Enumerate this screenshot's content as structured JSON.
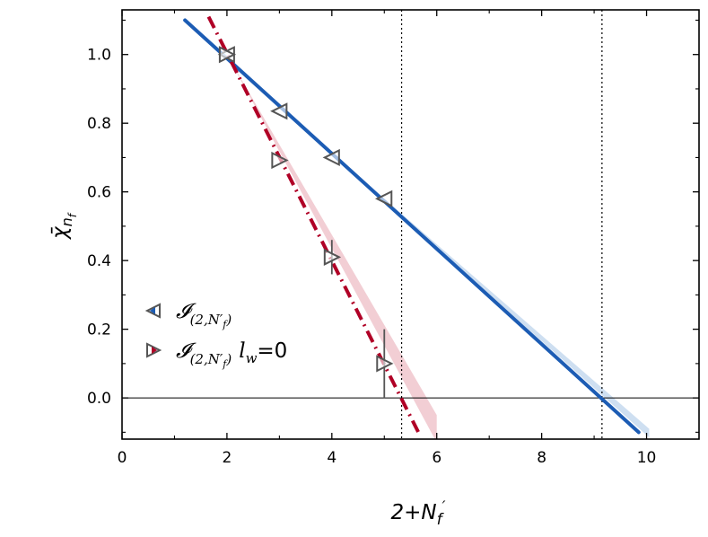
{
  "chart_data": {
    "type": "line",
    "xlabel": "2+N_f′",
    "ylabel": "χ̄_{n_f}",
    "xlim": [
      0,
      11
    ],
    "ylim": [
      -0.12,
      1.13
    ],
    "xticks": [
      0,
      2,
      4,
      6,
      8,
      10
    ],
    "yticks": [
      0.0,
      0.2,
      0.4,
      0.6,
      0.8,
      1.0
    ],
    "grid": false,
    "legend_position": "lower-left",
    "zero_line": 0.0,
    "vlines": [
      5.33,
      9.15
    ],
    "series": [
      {
        "name": "I(2,N_f′)",
        "legend_main": "𝓘",
        "legend_sub": "(2,N′",
        "legend_subsub": "f",
        "legend_close": ")",
        "legend_extra": "",
        "color": "#1c5cb4",
        "band_color": "#c5d9ef",
        "marker": "triangle-left",
        "points": [
          {
            "x": 2,
            "y": 1.0,
            "err": 0.0
          },
          {
            "x": 3,
            "y": 0.835,
            "err": 0.0
          },
          {
            "x": 4,
            "y": 0.7,
            "err": 0.0
          },
          {
            "x": 5,
            "y": 0.58,
            "err": 0.0
          }
        ],
        "fit": {
          "x": [
            1.2,
            9.85
          ],
          "y": [
            1.1,
            -0.1
          ]
        },
        "band": {
          "x": [
            5.0,
            10.05
          ],
          "lower": [
            0.575,
            -0.115
          ],
          "upper": [
            0.58,
            -0.09
          ]
        }
      },
      {
        "name": "I(2,N_f′) l_w=0",
        "legend_main": "𝓘",
        "legend_sub": "(2,N′",
        "legend_subsub": "f",
        "legend_close": ")",
        "legend_extra": "l",
        "legend_extra_sub": "w",
        "legend_extra_tail": "=0",
        "color": "#b00026",
        "band_color": "#f0c6cc",
        "marker": "triangle-right",
        "points": [
          {
            "x": 2,
            "y": 1.0,
            "err": 0.0
          },
          {
            "x": 3,
            "y": 0.692,
            "err": 0.0
          },
          {
            "x": 4,
            "y": 0.41,
            "err": 0.05
          },
          {
            "x": 5,
            "y": 0.1,
            "err": 0.1
          }
        ],
        "fit": {
          "x": [
            1.65,
            5.65
          ],
          "y": [
            1.11,
            -0.1
          ]
        },
        "band": {
          "x": [
            2.0,
            6.0
          ],
          "lower": [
            1.0,
            -0.13
          ],
          "upper": [
            1.0,
            -0.05
          ]
        }
      }
    ]
  }
}
